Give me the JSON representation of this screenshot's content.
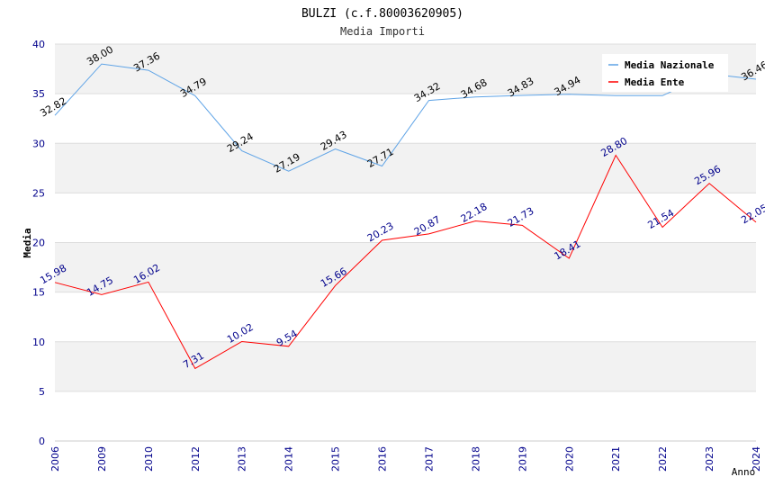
{
  "chart_data": {
    "type": "line",
    "title": "BULZI (c.f.80003620905)",
    "subtitle": "Media Importi",
    "xlabel": "Anno",
    "ylabel": "Media",
    "ylim": [
      0,
      40
    ],
    "yticks": [
      0,
      5,
      10,
      15,
      20,
      25,
      30,
      35,
      40
    ],
    "categories": [
      "2006",
      "2009",
      "2010",
      "2012",
      "2013",
      "2014",
      "2015",
      "2016",
      "2017",
      "2018",
      "2019",
      "2020",
      "2021",
      "2022",
      "2023",
      "2024"
    ],
    "grid": true,
    "legend_position": "top-right",
    "series": [
      {
        "name": "Media Nazionale",
        "color": "#5ea3e6",
        "label_color": "#000000",
        "values": [
          32.82,
          38.0,
          37.36,
          34.79,
          29.24,
          27.19,
          29.43,
          27.71,
          34.32,
          34.68,
          34.83,
          34.94,
          34.8,
          34.8,
          37.0,
          36.46
        ],
        "labels": [
          "32.82",
          "38.00",
          "37.36",
          "34.79",
          "29.24",
          "27.19",
          "29.43",
          "27.71",
          "34.32",
          "34.68",
          "34.83",
          "34.94",
          "",
          "",
          "",
          "36.46"
        ]
      },
      {
        "name": "Media Ente",
        "color": "#ff0000",
        "label_color": "#00008b",
        "values": [
          15.98,
          14.75,
          16.02,
          7.31,
          10.02,
          9.54,
          15.66,
          20.23,
          20.87,
          22.18,
          21.73,
          18.41,
          28.8,
          21.54,
          25.96,
          22.05
        ],
        "labels": [
          "15.98",
          "14.75",
          "16.02",
          "7.31",
          "10.02",
          "9.54",
          "15.66",
          "20.23",
          "20.87",
          "22.18",
          "21.73",
          "18.41",
          "28.80",
          "21.54",
          "25.96",
          "22.05"
        ]
      }
    ]
  }
}
